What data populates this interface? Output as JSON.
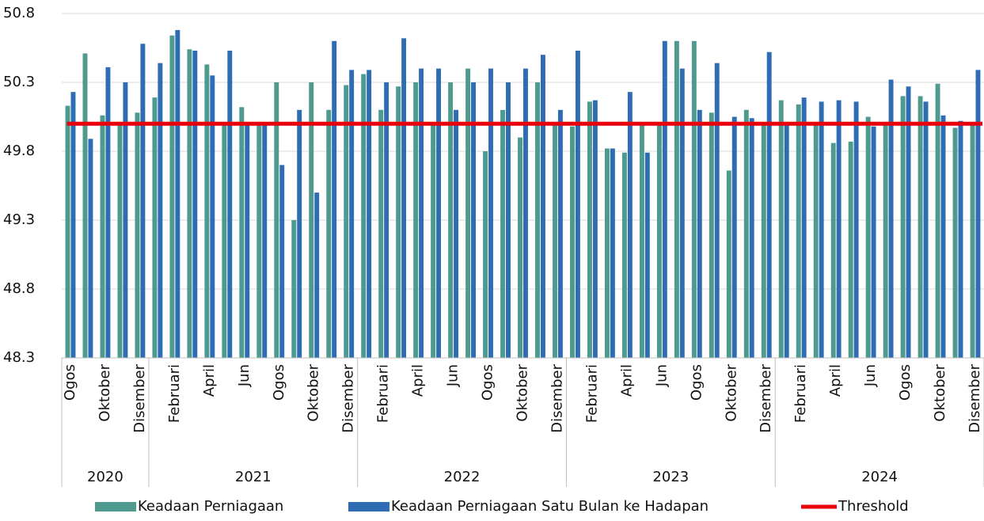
{
  "chart_data": {
    "type": "bar",
    "categories": [
      "Ogos",
      null,
      "Oktober",
      null,
      "Disember",
      null,
      "Februari",
      null,
      "April",
      null,
      "Jun",
      null,
      "Ogos",
      null,
      "Oktober",
      null,
      "Disember",
      null,
      "Februari",
      null,
      "April",
      null,
      "Jun",
      null,
      "Ogos",
      null,
      "Oktober",
      null,
      "Disember",
      null,
      "Februari",
      null,
      "April",
      null,
      "Jun",
      null,
      "Ogos",
      null,
      "Oktober",
      null,
      "Disember",
      null,
      "Februari",
      null,
      "April",
      null,
      "Jun",
      null,
      "Ogos",
      null,
      "Oktober",
      null,
      "Disember"
    ],
    "group_labels": [
      "2020",
      "2021",
      "2022",
      "2023",
      "2024"
    ],
    "group_sizes": [
      5,
      12,
      12,
      12,
      12
    ],
    "series": [
      {
        "name": "Keadaan Perniagaan",
        "color": "#4e9a8e",
        "values": [
          50.13,
          50.51,
          50.06,
          50.0,
          50.08,
          50.19,
          50.64,
          50.54,
          50.43,
          50.0,
          50.12,
          49.99,
          50.3,
          49.3,
          50.3,
          50.1,
          50.28,
          50.36,
          50.1,
          50.27,
          50.3,
          50.0,
          50.3,
          50.4,
          49.8,
          50.1,
          49.9,
          50.3,
          50.0,
          49.98,
          50.16,
          49.82,
          49.79,
          49.99,
          50.0,
          50.6,
          50.6,
          50.08,
          49.66,
          50.1,
          50.0,
          50.17,
          50.14,
          50.0,
          49.86,
          49.87,
          50.05,
          50.0,
          50.2,
          50.2,
          50.29,
          49.97,
          50.0
        ]
      },
      {
        "name": "Keadaan Perniagaan Satu Bulan ke Hadapan",
        "color": "#2e6db4",
        "values": [
          50.23,
          49.89,
          50.41,
          50.3,
          50.58,
          50.44,
          50.68,
          50.53,
          50.35,
          50.53,
          50.0,
          49.99,
          49.7,
          50.1,
          49.5,
          50.6,
          50.39,
          50.39,
          50.3,
          50.62,
          50.4,
          50.4,
          50.1,
          50.3,
          50.4,
          50.3,
          50.4,
          50.5,
          50.1,
          50.53,
          50.17,
          49.82,
          50.23,
          49.79,
          50.6,
          50.4,
          50.1,
          50.44,
          50.05,
          50.04,
          50.52,
          50.0,
          50.19,
          50.16,
          50.17,
          50.16,
          49.98,
          50.32,
          50.27,
          50.16,
          50.06,
          50.02,
          50.39
        ]
      }
    ],
    "threshold": {
      "name": "Threshold",
      "value": 50,
      "color": "#e8000b"
    },
    "ylim": [
      48.3,
      50.8
    ],
    "yticks": [
      48.3,
      48.8,
      49.3,
      49.8,
      50.3,
      50.8
    ],
    "grid": true
  }
}
